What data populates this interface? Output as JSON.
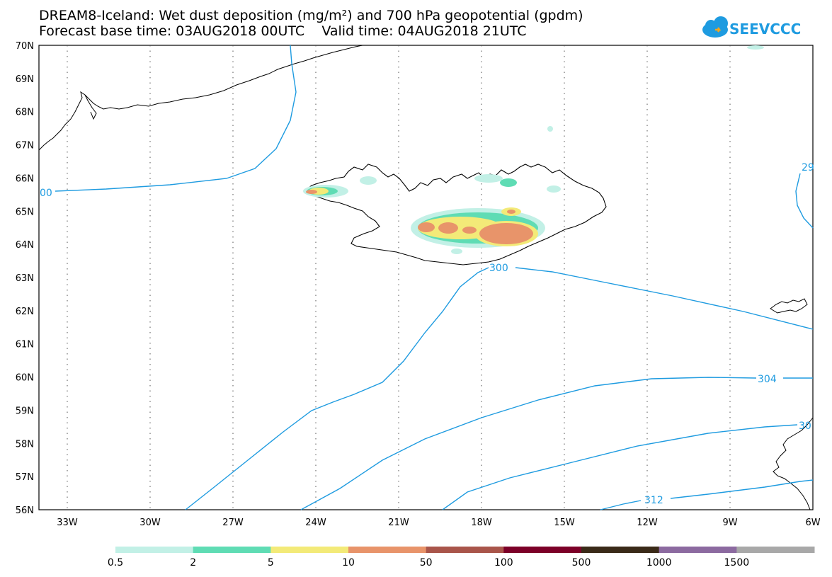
{
  "header": {
    "title_line1": "DREAM8-Iceland: Wet dust deposition (mg/m²) and 700 hPa geopotential (gpdm)",
    "title_line2": "Forecast base time: 03AUG2018 00UTC    Valid time: 04AUG2018 21UTC",
    "logo_text": "SEEVCCC"
  },
  "map": {
    "lat_labels": [
      "70N",
      "69N",
      "68N",
      "67N",
      "66N",
      "65N",
      "64N",
      "63N",
      "62N",
      "61N",
      "60N",
      "59N",
      "58N",
      "57N",
      "56N"
    ],
    "lon_labels": [
      "33W",
      "30W",
      "27W",
      "24W",
      "21W",
      "18W",
      "15W",
      "12W",
      "9W",
      "6W"
    ],
    "contour_labels": [
      "00",
      "300",
      "304",
      "312",
      "29",
      "30"
    ]
  },
  "legend": {
    "labels": [
      "0.5",
      "2",
      "5",
      "10",
      "50",
      "100",
      "500",
      "1000",
      "1500"
    ],
    "colors": [
      "#c2f0e6",
      "#5fdcb4",
      "#f3ea78",
      "#e8946a",
      "#a9554a",
      "#7c0028",
      "#3a2a18",
      "#8c6aa0",
      "#a8a8a8"
    ]
  },
  "colors": {
    "contour": "#1e9be0",
    "coast": "#000000",
    "grid": "#555555"
  }
}
